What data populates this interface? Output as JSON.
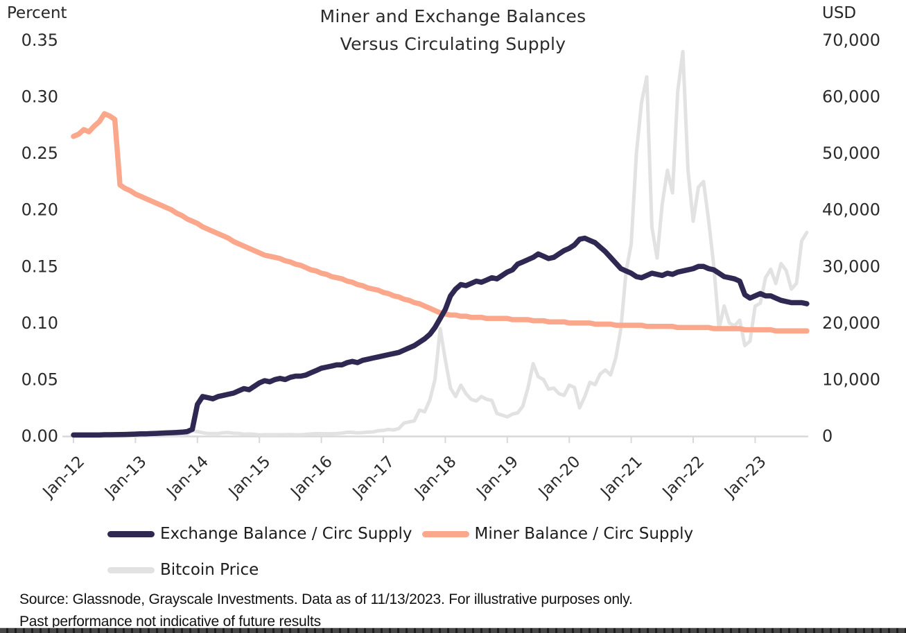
{
  "header": {
    "title_line1": "Miner and Exchange Balances",
    "title_line2": "Versus Circulating Supply",
    "left_axis_unit": "Percent",
    "right_axis_unit": "USD"
  },
  "legend": {
    "items": [
      {
        "label": "Exchange Balance / Circ Supply",
        "color": "#2e2852"
      },
      {
        "label": "Miner Balance / Circ Supply",
        "color": "#faa78c"
      },
      {
        "label": "Bitcoin Price",
        "color": "#e2e2e2"
      }
    ]
  },
  "footnote": {
    "line1": "Source: Glassnode, Grayscale Investments. Data as of 11/13/2023. For illustrative purposes only.",
    "line2": "Past performance not indicative of future results"
  },
  "chart_data": {
    "type": "line",
    "title": "Miner and Exchange Balances Versus Circulating Supply",
    "x_start": "Jan-2012",
    "x_end": "Nov-2023",
    "x_step": "monthly",
    "x_tick_labels": [
      "Jan-12",
      "Jan-13",
      "Jan-14",
      "Jan-15",
      "Jan-16",
      "Jan-17",
      "Jan-18",
      "Jan-19",
      "Jan-20",
      "Jan-21",
      "Jan-22",
      "Jan-23"
    ],
    "left_axis": {
      "label": "Percent",
      "range": [
        0,
        0.35
      ],
      "ticks": [
        0.35,
        0.3,
        0.25,
        0.2,
        0.15,
        0.1,
        0.05,
        0.0
      ],
      "tick_labels": [
        "0.35",
        "0.30",
        "0.25",
        "0.20",
        "0.15",
        "0.10",
        "0.05",
        "0.00"
      ]
    },
    "right_axis": {
      "label": "USD",
      "range": [
        0,
        70000
      ],
      "ticks": [
        70000,
        60000,
        50000,
        40000,
        30000,
        20000,
        10000,
        0
      ],
      "tick_labels": [
        "70,000",
        "60,000",
        "50,000",
        "40,000",
        "30,000",
        "20,000",
        "10,000",
        "0"
      ]
    },
    "grid": false,
    "legend_position": "bottom",
    "series": [
      {
        "name": "Exchange Balance / Circ Supply",
        "axis": "left",
        "color": "#2e2852",
        "stroke_width": 7.5,
        "values": [
          0.001,
          0.001,
          0.001,
          0.001,
          0.001,
          0.001,
          0.0012,
          0.0012,
          0.0013,
          0.0014,
          0.0015,
          0.0016,
          0.0018,
          0.002,
          0.002,
          0.0022,
          0.0024,
          0.0026,
          0.0028,
          0.003,
          0.0032,
          0.0035,
          0.004,
          0.006,
          0.028,
          0.035,
          0.034,
          0.033,
          0.035,
          0.036,
          0.037,
          0.038,
          0.04,
          0.042,
          0.041,
          0.044,
          0.047,
          0.049,
          0.048,
          0.05,
          0.051,
          0.05,
          0.052,
          0.053,
          0.053,
          0.054,
          0.056,
          0.058,
          0.06,
          0.061,
          0.062,
          0.063,
          0.063,
          0.065,
          0.066,
          0.065,
          0.067,
          0.068,
          0.069,
          0.07,
          0.071,
          0.072,
          0.073,
          0.074,
          0.076,
          0.078,
          0.08,
          0.083,
          0.086,
          0.09,
          0.096,
          0.104,
          0.112,
          0.124,
          0.13,
          0.134,
          0.133,
          0.135,
          0.137,
          0.136,
          0.138,
          0.14,
          0.139,
          0.142,
          0.145,
          0.147,
          0.152,
          0.154,
          0.156,
          0.158,
          0.161,
          0.159,
          0.157,
          0.158,
          0.161,
          0.164,
          0.166,
          0.169,
          0.174,
          0.175,
          0.173,
          0.171,
          0.167,
          0.163,
          0.158,
          0.153,
          0.148,
          0.146,
          0.144,
          0.141,
          0.14,
          0.142,
          0.144,
          0.143,
          0.142,
          0.144,
          0.143,
          0.145,
          0.146,
          0.147,
          0.148,
          0.15,
          0.15,
          0.148,
          0.147,
          0.144,
          0.141,
          0.14,
          0.139,
          0.137,
          0.125,
          0.122,
          0.124,
          0.126,
          0.124,
          0.124,
          0.122,
          0.12,
          0.119,
          0.118,
          0.118,
          0.118,
          0.117
        ]
      },
      {
        "name": "Miner Balance / Circ Supply",
        "axis": "left",
        "color": "#faa78c",
        "stroke_width": 7.5,
        "values": [
          0.265,
          0.267,
          0.271,
          0.269,
          0.274,
          0.278,
          0.285,
          0.283,
          0.28,
          0.222,
          0.219,
          0.217,
          0.214,
          0.212,
          0.21,
          0.208,
          0.206,
          0.204,
          0.202,
          0.2,
          0.197,
          0.195,
          0.192,
          0.19,
          0.188,
          0.185,
          0.183,
          0.181,
          0.179,
          0.177,
          0.175,
          0.172,
          0.17,
          0.168,
          0.166,
          0.164,
          0.162,
          0.16,
          0.159,
          0.158,
          0.157,
          0.155,
          0.154,
          0.152,
          0.151,
          0.149,
          0.147,
          0.146,
          0.144,
          0.143,
          0.141,
          0.14,
          0.139,
          0.137,
          0.136,
          0.134,
          0.133,
          0.131,
          0.13,
          0.129,
          0.127,
          0.126,
          0.124,
          0.123,
          0.121,
          0.12,
          0.118,
          0.117,
          0.115,
          0.113,
          0.111,
          0.109,
          0.108,
          0.107,
          0.107,
          0.106,
          0.106,
          0.105,
          0.105,
          0.105,
          0.104,
          0.104,
          0.104,
          0.104,
          0.104,
          0.103,
          0.103,
          0.103,
          0.103,
          0.102,
          0.102,
          0.102,
          0.101,
          0.101,
          0.101,
          0.101,
          0.1,
          0.1,
          0.1,
          0.1,
          0.1,
          0.099,
          0.099,
          0.099,
          0.099,
          0.098,
          0.098,
          0.098,
          0.098,
          0.098,
          0.098,
          0.097,
          0.097,
          0.097,
          0.097,
          0.097,
          0.097,
          0.096,
          0.096,
          0.096,
          0.096,
          0.096,
          0.096,
          0.096,
          0.095,
          0.095,
          0.095,
          0.095,
          0.095,
          0.095,
          0.094,
          0.094,
          0.094,
          0.094,
          0.094,
          0.094,
          0.093,
          0.093,
          0.093,
          0.093,
          0.093,
          0.093,
          0.093
        ]
      },
      {
        "name": "Bitcoin Price",
        "axis": "right",
        "color": "#e2e2e2",
        "stroke_width": 5,
        "values": [
          6,
          5,
          5,
          5,
          5,
          6,
          8,
          10,
          12,
          12,
          11,
          13,
          20,
          30,
          90,
          140,
          120,
          100,
          95,
          110,
          135,
          185,
          350,
          950,
          800,
          600,
          450,
          450,
          440,
          600,
          620,
          500,
          480,
          340,
          370,
          320,
          220,
          250,
          250,
          240,
          240,
          260,
          280,
          230,
          235,
          310,
          380,
          430,
          430,
          420,
          415,
          450,
          530,
          670,
          660,
          570,
          610,
          700,
          740,
          950,
          1000,
          1190,
          1080,
          1350,
          2300,
          2500,
          2700,
          4600,
          4300,
          6400,
          10000,
          19000,
          13500,
          8500,
          7000,
          9000,
          7500,
          6500,
          6200,
          7000,
          6500,
          6300,
          4000,
          3700,
          3400,
          3900,
          4100,
          5300,
          8500,
          12800,
          10500,
          10000,
          8300,
          8500,
          7500,
          7200,
          9000,
          8600,
          5000,
          7000,
          9500,
          9100,
          11000,
          11700,
          10800,
          13800,
          19000,
          29000,
          34000,
          50000,
          59000,
          63500,
          37000,
          31500,
          41000,
          47000,
          43000,
          61000,
          68000,
          47000,
          38000,
          44000,
          45000,
          38000,
          30000,
          19000,
          23000,
          20000,
          19500,
          20500,
          16000,
          16800,
          23000,
          23500,
          28000,
          29500,
          27000,
          30500,
          29300,
          26000,
          27000,
          34500,
          36000
        ]
      }
    ]
  }
}
